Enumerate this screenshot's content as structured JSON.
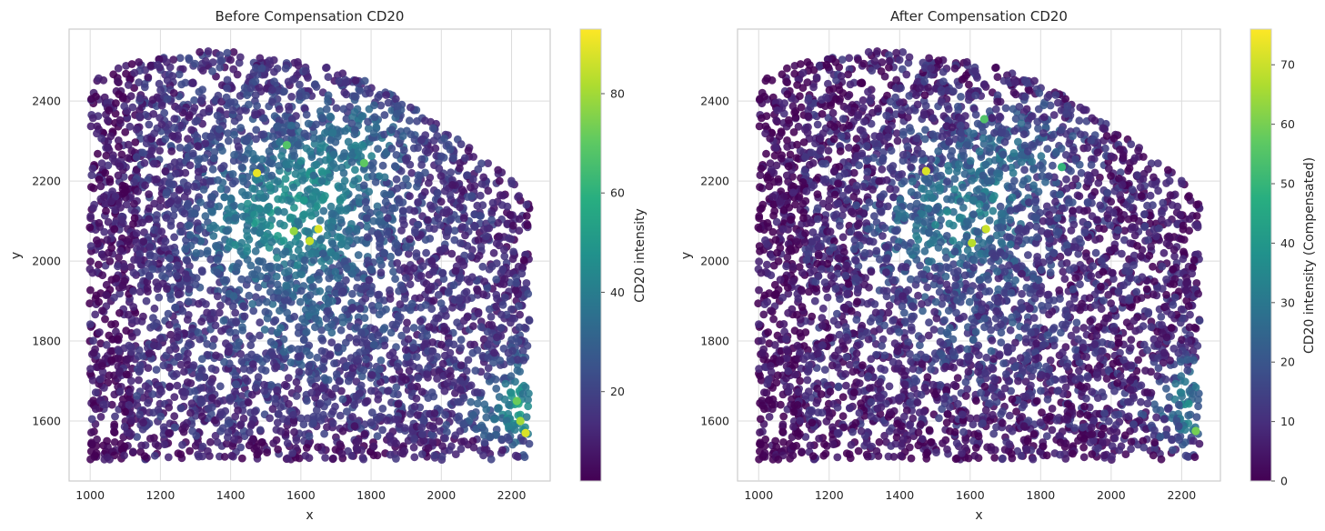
{
  "chart_data": [
    {
      "type": "scatter",
      "title": "Before Compensation CD20",
      "xlabel": "x",
      "ylabel": "y",
      "xlim": [
        940,
        2310
      ],
      "ylim": [
        1450,
        2580
      ],
      "xticks": [
        "1000",
        "1200",
        "1400",
        "1600",
        "1800",
        "2000",
        "2200"
      ],
      "yticks": [
        "1600",
        "1800",
        "2000",
        "2200",
        "2400"
      ],
      "grid": true,
      "colorscale": "viridis",
      "colorbar": {
        "label": "CD20 intensity",
        "range": [
          2,
          93
        ],
        "ticks": [
          "20",
          "40",
          "60",
          "80"
        ]
      },
      "hotspots": [
        {
          "x": 1475,
          "y": 2220,
          "value": 90
        },
        {
          "x": 1650,
          "y": 2080,
          "value": 88
        },
        {
          "x": 1625,
          "y": 2050,
          "value": 85
        },
        {
          "x": 1580,
          "y": 2075,
          "value": 78
        },
        {
          "x": 2225,
          "y": 1600,
          "value": 80
        },
        {
          "x": 2240,
          "y": 1570,
          "value": 88
        },
        {
          "x": 2215,
          "y": 1650,
          "value": 72
        },
        {
          "x": 1780,
          "y": 2245,
          "value": 70
        },
        {
          "x": 1560,
          "y": 2290,
          "value": 68
        }
      ]
    },
    {
      "type": "scatter",
      "title": "After Compensation CD20",
      "xlabel": "x",
      "ylabel": "y",
      "xlim": [
        940,
        2310
      ],
      "ylim": [
        1450,
        2580
      ],
      "xticks": [
        "1000",
        "1200",
        "1400",
        "1600",
        "1800",
        "2000",
        "2200"
      ],
      "yticks": [
        "1600",
        "1800",
        "2000",
        "2200",
        "2400"
      ],
      "grid": true,
      "colorscale": "viridis",
      "colorbar": {
        "label": "CD20 intensity (Compensated)",
        "range": [
          0,
          76
        ],
        "ticks": [
          "0",
          "10",
          "20",
          "30",
          "40",
          "50",
          "60",
          "70"
        ]
      },
      "hotspots": [
        {
          "x": 1475,
          "y": 2225,
          "value": 72
        },
        {
          "x": 1645,
          "y": 2080,
          "value": 70
        },
        {
          "x": 1605,
          "y": 2045,
          "value": 68
        },
        {
          "x": 2240,
          "y": 1575,
          "value": 60
        },
        {
          "x": 1640,
          "y": 2355,
          "value": 55
        },
        {
          "x": 1860,
          "y": 2235,
          "value": 50
        }
      ]
    }
  ]
}
